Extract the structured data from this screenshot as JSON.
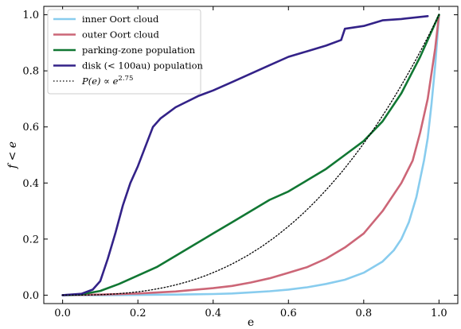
{
  "chart_data": {
    "type": "line",
    "xlabel": "e",
    "ylabel": "f < e",
    "xlim": [
      -0.05,
      1.05
    ],
    "ylim": [
      -0.03,
      1.03
    ],
    "grid": false,
    "legend_position": "top-left",
    "x_ticks": [
      {
        "value": 0.0,
        "label": "0.0"
      },
      {
        "value": 0.2,
        "label": "0.2"
      },
      {
        "value": 0.4,
        "label": "0.4"
      },
      {
        "value": 0.6,
        "label": "0.6"
      },
      {
        "value": 0.8,
        "label": "0.8"
      },
      {
        "value": 1.0,
        "label": "1.0"
      }
    ],
    "y_ticks": [
      {
        "value": 0.0,
        "label": "0.0"
      },
      {
        "value": 0.2,
        "label": "0.2"
      },
      {
        "value": 0.4,
        "label": "0.4"
      },
      {
        "value": 0.6,
        "label": "0.6"
      },
      {
        "value": 0.8,
        "label": "0.8"
      },
      {
        "value": 1.0,
        "label": "1.0"
      }
    ],
    "series": [
      {
        "name": "inner Oort cloud",
        "color": "#88ccee",
        "style": "solid",
        "points": [
          [
            0,
            0
          ],
          [
            0.1,
            0
          ],
          [
            0.2,
            0.001
          ],
          [
            0.3,
            0.002
          ],
          [
            0.4,
            0.004
          ],
          [
            0.45,
            0.006
          ],
          [
            0.5,
            0.01
          ],
          [
            0.55,
            0.014
          ],
          [
            0.6,
            0.02
          ],
          [
            0.65,
            0.028
          ],
          [
            0.7,
            0.04
          ],
          [
            0.75,
            0.055
          ],
          [
            0.8,
            0.08
          ],
          [
            0.85,
            0.12
          ],
          [
            0.88,
            0.16
          ],
          [
            0.9,
            0.2
          ],
          [
            0.92,
            0.26
          ],
          [
            0.94,
            0.35
          ],
          [
            0.96,
            0.48
          ],
          [
            0.97,
            0.56
          ],
          [
            0.98,
            0.68
          ],
          [
            0.99,
            0.82
          ],
          [
            1.0,
            1.0
          ]
        ]
      },
      {
        "name": "outer Oort cloud",
        "color": "#cc6677",
        "style": "solid",
        "points": [
          [
            0,
            0
          ],
          [
            0.1,
            0.002
          ],
          [
            0.2,
            0.006
          ],
          [
            0.3,
            0.013
          ],
          [
            0.4,
            0.025
          ],
          [
            0.45,
            0.033
          ],
          [
            0.5,
            0.045
          ],
          [
            0.55,
            0.06
          ],
          [
            0.6,
            0.08
          ],
          [
            0.65,
            0.1
          ],
          [
            0.7,
            0.13
          ],
          [
            0.75,
            0.17
          ],
          [
            0.8,
            0.22
          ],
          [
            0.85,
            0.3
          ],
          [
            0.9,
            0.4
          ],
          [
            0.93,
            0.48
          ],
          [
            0.95,
            0.58
          ],
          [
            0.97,
            0.7
          ],
          [
            0.99,
            0.88
          ],
          [
            1.0,
            1.0
          ]
        ]
      },
      {
        "name": "parking-zone population",
        "color": "#117733",
        "style": "solid",
        "points": [
          [
            0,
            0
          ],
          [
            0.05,
            0.003
          ],
          [
            0.1,
            0.015
          ],
          [
            0.15,
            0.04
          ],
          [
            0.2,
            0.07
          ],
          [
            0.25,
            0.1
          ],
          [
            0.3,
            0.14
          ],
          [
            0.35,
            0.18
          ],
          [
            0.4,
            0.22
          ],
          [
            0.45,
            0.26
          ],
          [
            0.5,
            0.3
          ],
          [
            0.55,
            0.34
          ],
          [
            0.6,
            0.37
          ],
          [
            0.65,
            0.41
          ],
          [
            0.7,
            0.45
          ],
          [
            0.75,
            0.5
          ],
          [
            0.8,
            0.55
          ],
          [
            0.85,
            0.62
          ],
          [
            0.9,
            0.72
          ],
          [
            0.95,
            0.85
          ],
          [
            1.0,
            1.0
          ]
        ]
      },
      {
        "name": "disk (< 100au) population",
        "color": "#332288",
        "style": "solid",
        "points": [
          [
            0,
            0
          ],
          [
            0.05,
            0.005
          ],
          [
            0.08,
            0.02
          ],
          [
            0.1,
            0.05
          ],
          [
            0.12,
            0.13
          ],
          [
            0.14,
            0.22
          ],
          [
            0.16,
            0.32
          ],
          [
            0.18,
            0.4
          ],
          [
            0.2,
            0.46
          ],
          [
            0.22,
            0.53
          ],
          [
            0.24,
            0.6
          ],
          [
            0.26,
            0.63
          ],
          [
            0.28,
            0.65
          ],
          [
            0.3,
            0.67
          ],
          [
            0.33,
            0.69
          ],
          [
            0.36,
            0.71
          ],
          [
            0.4,
            0.73
          ],
          [
            0.45,
            0.76
          ],
          [
            0.5,
            0.79
          ],
          [
            0.55,
            0.82
          ],
          [
            0.6,
            0.85
          ],
          [
            0.65,
            0.87
          ],
          [
            0.7,
            0.89
          ],
          [
            0.74,
            0.91
          ],
          [
            0.75,
            0.95
          ],
          [
            0.8,
            0.96
          ],
          [
            0.85,
            0.98
          ],
          [
            0.9,
            0.985
          ],
          [
            0.97,
            0.995
          ]
        ]
      },
      {
        "name": "P(e) ∝ e^2.75",
        "color": "#000000",
        "style": "dotted",
        "function": "power",
        "exponent": 2.75
      }
    ]
  }
}
